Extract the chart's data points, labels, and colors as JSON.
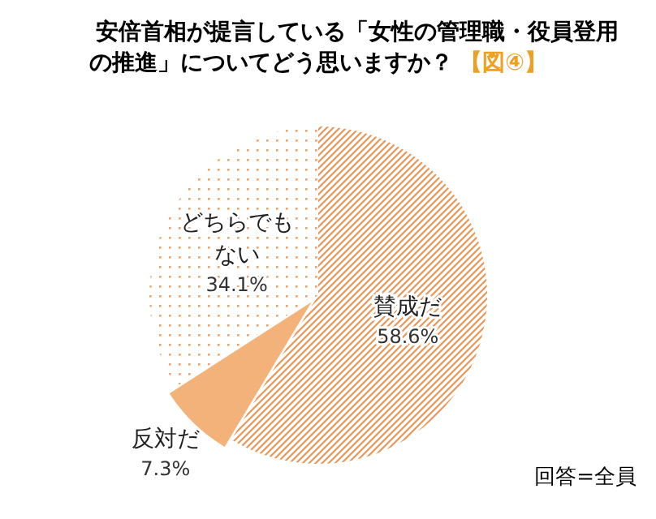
{
  "chart_data": {
    "type": "pie",
    "title": "安倍首相が提言している「女性の管理職・役員登用の推進」についてどう思いますか？",
    "subtitle": "【図④】",
    "categories": [
      "賛成だ",
      "反対だ",
      "どちらでもない"
    ],
    "values": [
      58.6,
      7.3,
      34.1
    ],
    "value_labels": [
      "58.6%",
      "7.3%",
      "34.1%"
    ],
    "colors": [
      "#e8975a",
      "#f2b27a",
      "#e9a26e"
    ],
    "annotations": [
      "回答=全員"
    ],
    "legend": false
  }
}
